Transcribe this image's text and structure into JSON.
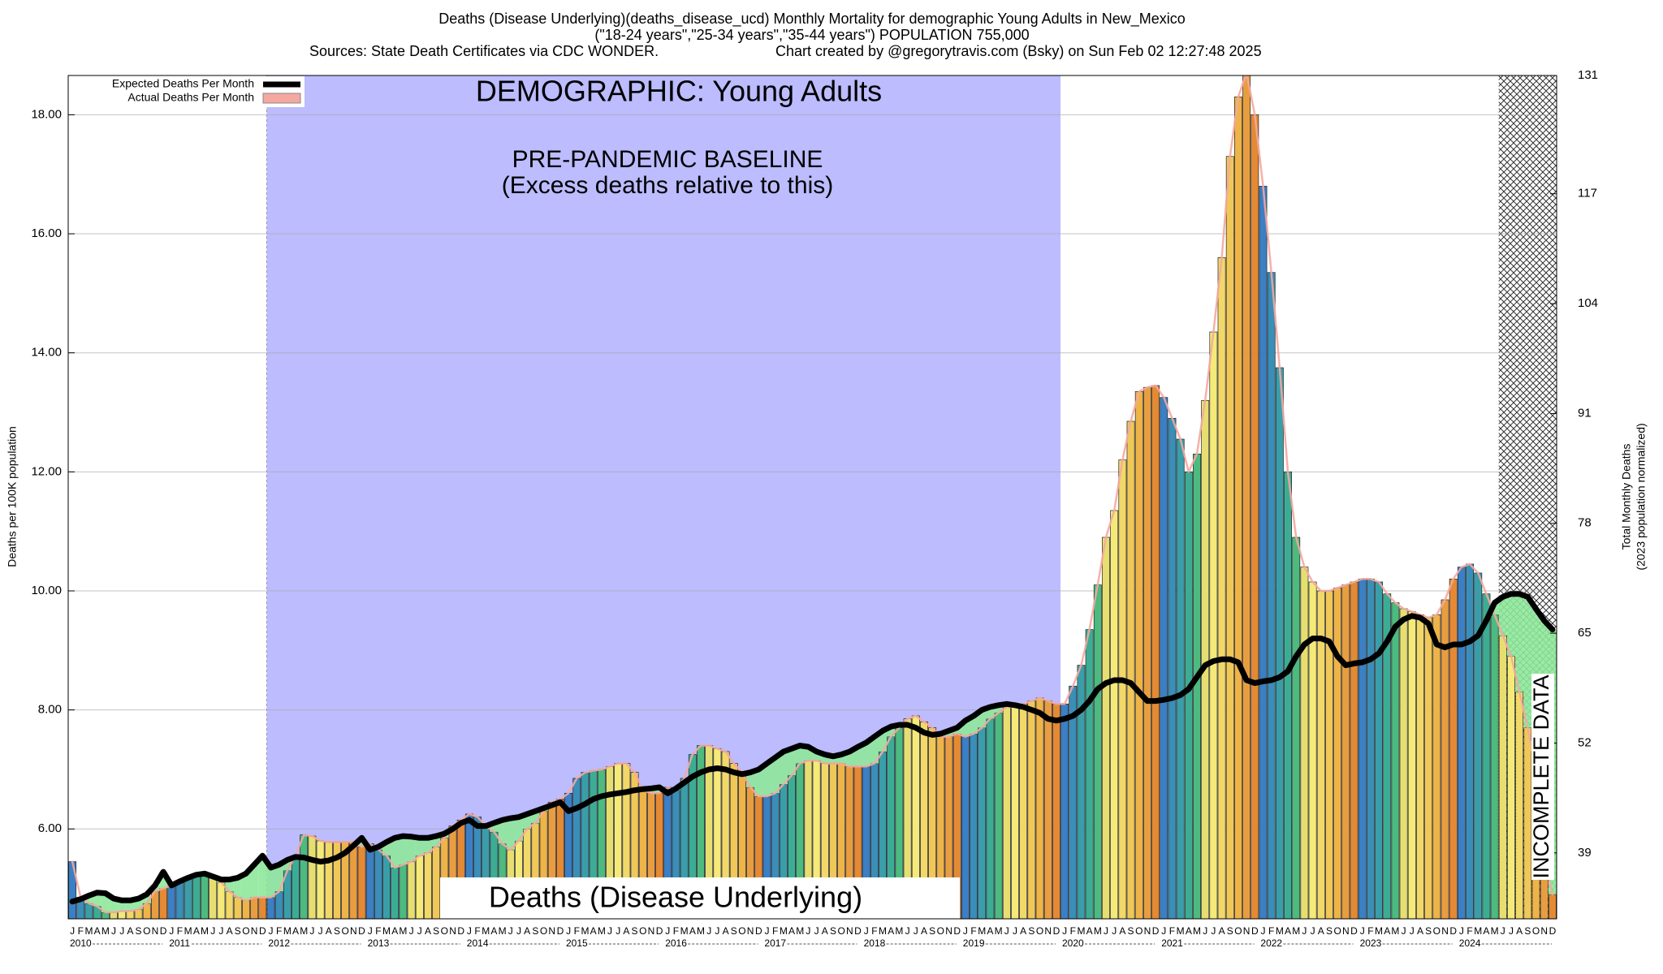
{
  "chart_data": {
    "type": "bar",
    "title": "Deaths (Disease Underlying)(deaths_disease_ucd) Monthly Mortality for demographic Young Adults in New_Mexico",
    "subtitle": "(\"18-24 years\",\"25-34 years\",\"35-44 years\") POPULATION 755,000",
    "sources": "Sources: State Death Certificates via CDC WONDER.",
    "credit": "Chart created by @gregorytravis.com (Bsky) on Sun Feb 02 12:27:48 2025",
    "ylabel": "Deaths per 100K population",
    "y2label": [
      "Total Monthly Deaths",
      "(2023 population normalized)"
    ],
    "annotations": [
      "DEMOGRAPHIC: Young Adults",
      "PRE-PANDEMIC BASELINE",
      "(Excess deaths relative to this)",
      "Deaths (Disease Underlying)",
      "INCOMPLETE DATA"
    ],
    "categories": [
      "J",
      "F",
      "M",
      "A",
      "M",
      "J",
      "J",
      "A",
      "S",
      "O",
      "N",
      "D",
      "J",
      "F",
      "M",
      "A",
      "M",
      "J",
      "J",
      "A",
      "S",
      "O",
      "N",
      "D",
      "J",
      "F",
      "M",
      "A",
      "M",
      "J",
      "J",
      "A",
      "S",
      "O",
      "N",
      "D",
      "J",
      "F",
      "M",
      "A",
      "M",
      "J",
      "J",
      "A",
      "S",
      "O",
      "N",
      "D",
      "J",
      "F",
      "M",
      "A",
      "M",
      "J",
      "J",
      "A",
      "S",
      "O",
      "N",
      "D",
      "J",
      "F",
      "M",
      "A",
      "M",
      "J",
      "J",
      "A",
      "S",
      "O",
      "N",
      "D",
      "J",
      "F",
      "M",
      "A",
      "M",
      "J",
      "J",
      "A",
      "S",
      "O",
      "N",
      "D",
      "J",
      "F",
      "M",
      "A",
      "M",
      "J",
      "J",
      "A",
      "S",
      "O",
      "N",
      "D",
      "J",
      "F",
      "M",
      "A",
      "M",
      "J",
      "J",
      "A",
      "S",
      "O",
      "N",
      "D",
      "J",
      "F",
      "M",
      "A",
      "M",
      "J",
      "J",
      "A",
      "S",
      "O",
      "N",
      "D",
      "J",
      "F",
      "M",
      "A",
      "M",
      "J",
      "J",
      "A",
      "S",
      "O",
      "N",
      "D",
      "J",
      "F",
      "M",
      "A",
      "M",
      "J",
      "J",
      "A",
      "S",
      "O",
      "N",
      "D",
      "J",
      "F",
      "M",
      "A",
      "M",
      "J",
      "J",
      "A",
      "S",
      "O",
      "N",
      "D",
      "J",
      "F",
      "M",
      "A",
      "M",
      "J",
      "J",
      "A",
      "S",
      "O",
      "N",
      "D",
      "J",
      "F",
      "M",
      "A",
      "M",
      "J",
      "J",
      "A",
      "S",
      "O",
      "N",
      "D"
    ],
    "years": [
      "2010",
      "2011",
      "2012",
      "2013",
      "2014",
      "2015",
      "2016",
      "2017",
      "2018",
      "2019",
      "2020",
      "2021",
      "2022",
      "2023",
      "2024"
    ],
    "series": [
      {
        "name": "Expected Deaths Per Month",
        "color": "#000000",
        "values": [
          4.78,
          4.82,
          4.88,
          4.93,
          4.92,
          4.83,
          4.8,
          4.8,
          4.83,
          4.9,
          5.05,
          5.28,
          5.05,
          5.12,
          5.18,
          5.23,
          5.25,
          5.2,
          5.15,
          5.15,
          5.18,
          5.25,
          5.4,
          5.55,
          5.35,
          5.4,
          5.48,
          5.53,
          5.52,
          5.48,
          5.45,
          5.47,
          5.52,
          5.6,
          5.72,
          5.85,
          5.65,
          5.7,
          5.78,
          5.85,
          5.88,
          5.87,
          5.85,
          5.85,
          5.88,
          5.92,
          6.0,
          6.1,
          6.15,
          6.05,
          6.05,
          6.1,
          6.15,
          6.18,
          6.2,
          6.25,
          6.3,
          6.35,
          6.4,
          6.45,
          6.3,
          6.35,
          6.42,
          6.5,
          6.55,
          6.58,
          6.6,
          6.62,
          6.65,
          6.67,
          6.68,
          6.7,
          6.6,
          6.68,
          6.78,
          6.88,
          6.95,
          7.0,
          7.02,
          7.0,
          6.95,
          6.92,
          6.95,
          7.0,
          7.1,
          7.2,
          7.3,
          7.35,
          7.4,
          7.38,
          7.3,
          7.25,
          7.22,
          7.25,
          7.3,
          7.38,
          7.45,
          7.55,
          7.65,
          7.72,
          7.75,
          7.75,
          7.7,
          7.62,
          7.58,
          7.6,
          7.65,
          7.7,
          7.82,
          7.9,
          8.0,
          8.05,
          8.08,
          8.1,
          8.08,
          8.05,
          8.0,
          7.95,
          7.85,
          7.82,
          7.85,
          7.9,
          8.0,
          8.15,
          8.35,
          8.45,
          8.5,
          8.5,
          8.45,
          8.3,
          8.15,
          8.15,
          8.17,
          8.2,
          8.25,
          8.35,
          8.55,
          8.75,
          8.82,
          8.85,
          8.85,
          8.8,
          8.5,
          8.45,
          8.48,
          8.5,
          8.55,
          8.65,
          8.9,
          9.1,
          9.2,
          9.2,
          9.15,
          8.9,
          8.75,
          8.78,
          8.8,
          8.85,
          8.95,
          9.15,
          9.4,
          9.52,
          9.58,
          9.55,
          9.45,
          9.1,
          9.05,
          9.1,
          9.1,
          9.15,
          9.25,
          9.5,
          9.8,
          9.9,
          9.95,
          9.95,
          9.9,
          9.7,
          9.5,
          9.35
        ]
      },
      {
        "name": "Actual Deaths Per Month",
        "color": "#f4a8a0",
        "values": [
          5.45,
          4.85,
          4.75,
          4.7,
          4.6,
          4.6,
          4.62,
          4.62,
          4.65,
          4.75,
          4.95,
          5.0,
          5.05,
          5.1,
          5.2,
          5.25,
          5.25,
          5.2,
          5.1,
          4.95,
          4.85,
          4.8,
          4.85,
          4.85,
          4.85,
          4.95,
          5.3,
          5.55,
          5.9,
          5.88,
          5.8,
          5.78,
          5.78,
          5.78,
          5.78,
          5.7,
          5.75,
          5.65,
          5.55,
          5.35,
          5.4,
          5.45,
          5.55,
          5.6,
          5.7,
          5.85,
          6.05,
          6.15,
          6.25,
          6.2,
          6.05,
          5.95,
          5.75,
          5.65,
          5.8,
          6.0,
          6.1,
          6.3,
          6.45,
          6.5,
          6.6,
          6.85,
          6.95,
          6.98,
          7.0,
          7.05,
          7.1,
          7.1,
          6.95,
          6.65,
          6.6,
          6.6,
          6.7,
          6.65,
          6.85,
          7.25,
          7.4,
          7.4,
          7.35,
          7.3,
          7.1,
          6.95,
          6.7,
          6.55,
          6.55,
          6.6,
          6.75,
          6.9,
          7.1,
          7.15,
          7.15,
          7.1,
          7.1,
          7.1,
          7.05,
          7.05,
          7.05,
          7.1,
          7.3,
          7.55,
          7.7,
          7.85,
          7.9,
          7.8,
          7.7,
          7.55,
          7.55,
          7.6,
          7.55,
          7.6,
          7.7,
          7.85,
          7.95,
          8.05,
          8.05,
          8.1,
          8.15,
          8.2,
          8.15,
          8.1,
          8.1,
          8.4,
          8.75,
          9.35,
          10.1,
          10.9,
          11.35,
          12.2,
          12.85,
          13.35,
          13.42,
          13.45,
          13.25,
          12.9,
          12.55,
          12.0,
          12.3,
          13.2,
          14.35,
          15.6,
          17.3,
          18.3,
          18.7,
          18.0,
          16.8,
          15.35,
          13.75,
          12.0,
          10.9,
          10.4,
          10.15,
          10.0,
          10.0,
          10.05,
          10.1,
          10.15,
          10.2,
          10.2,
          10.15,
          9.95,
          9.8,
          9.7,
          9.65,
          9.6,
          9.55,
          9.6,
          9.85,
          10.2,
          10.4,
          10.45,
          10.3,
          9.95,
          9.6,
          9.25,
          8.9,
          8.3,
          7.7,
          7.0,
          5.5,
          4.9
        ]
      }
    ],
    "month_colors": [
      "#3b7fc4",
      "#3a8eb8",
      "#3a9ea9",
      "#3cad94",
      "#4dba7f",
      "#e6df70",
      "#f5ea78",
      "#f2d868",
      "#f0c858",
      "#eeb448",
      "#e89e40",
      "#e48a34"
    ],
    "shortfall_color": "#8ee89a",
    "baseline_color": "#bcbcff",
    "ylim": [
      4.49,
      18.66
    ],
    "yticks": [
      {
        "value": 6,
        "label": "6.00"
      },
      {
        "value": 8,
        "label": "8.00"
      },
      {
        "value": 10,
        "label": "10.00"
      },
      {
        "value": 12,
        "label": "12.00"
      },
      {
        "value": 14,
        "label": "14.00"
      },
      {
        "value": 16,
        "label": "16.00"
      },
      {
        "value": 18,
        "label": "18.00"
      }
    ],
    "y2lim": [
      31.2,
      131
    ],
    "y2ticks": [
      39,
      52,
      65,
      78,
      91,
      104,
      117,
      131
    ],
    "grid": true
  }
}
